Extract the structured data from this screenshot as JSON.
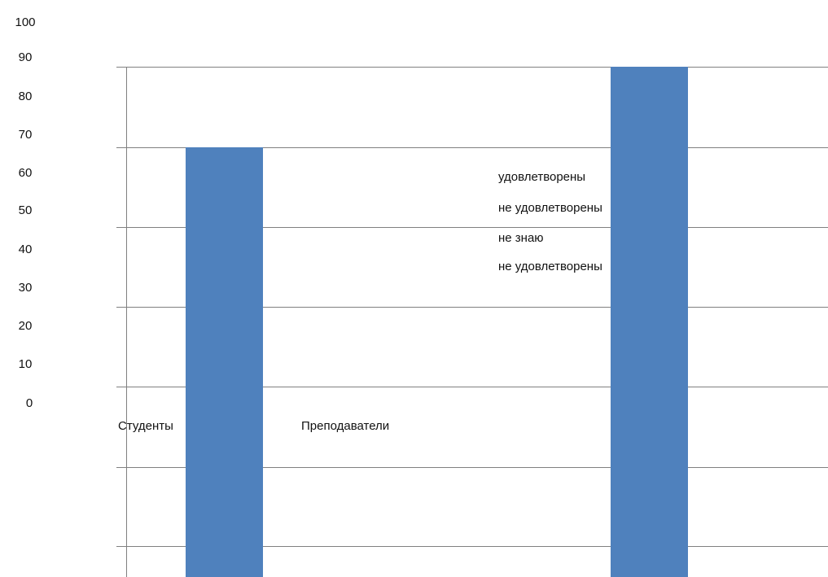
{
  "chart_data": {
    "type": "bar",
    "y_ticks": [
      "0",
      "10",
      "20",
      "30",
      "40",
      "50",
      "60",
      "70",
      "80",
      "90",
      "100"
    ],
    "categories": [
      "Студенты",
      "Преподаватели"
    ],
    "values": [
      70,
      89
    ],
    "ylim": [
      0,
      100
    ],
    "grid": true,
    "legend": {
      "placement": "center-right",
      "entries": [
        "удовлетворены",
        "не удовлетворены",
        "не знаю",
        "не удовлетворены"
      ]
    },
    "colors": {
      "bar": "#4f81bd",
      "grid": "#808080",
      "axis": "#808080"
    }
  }
}
